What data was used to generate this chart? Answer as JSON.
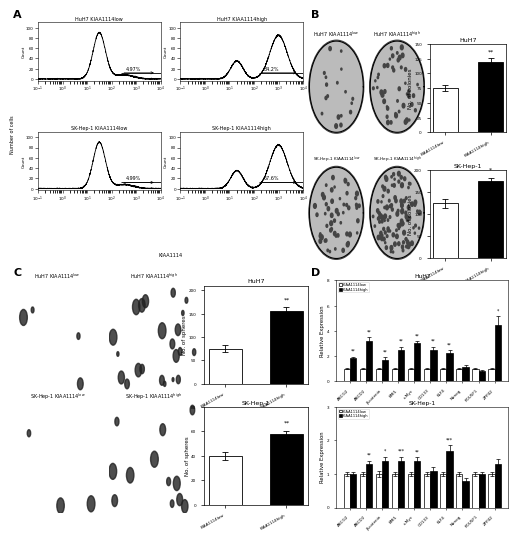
{
  "panel_A": {
    "label": "A",
    "titles": [
      "HuH7 KIAA1114low",
      "HuH7 KIAA1114high",
      "SK-Hep-1 KIAA1114low",
      "SK-Hep-1 KIAA1114high"
    ],
    "pcts": [
      "4.97%",
      "84.2%",
      "4.99%",
      "57.6%"
    ],
    "is_high": [
      false,
      true,
      false,
      true
    ],
    "xlabel": "KIAA1114",
    "ylabel": "Number of cells"
  },
  "panel_B_HuH7": {
    "categories": [
      "KIAA1114low",
      "KIAA1114high"
    ],
    "values": [
      75,
      120
    ],
    "errors": [
      5,
      6
    ],
    "colors": [
      "white",
      "black"
    ],
    "ylabel": "No. of colonies",
    "title": "HuH7",
    "ylim": [
      0,
      150
    ],
    "yticks": [
      0,
      25,
      50,
      75,
      100,
      125,
      150
    ],
    "sig": "**"
  },
  "panel_B_SKHep1": {
    "categories": [
      "KIAA1114low",
      "KIAA1114high"
    ],
    "values": [
      125,
      175
    ],
    "errors": [
      10,
      7
    ],
    "colors": [
      "white",
      "black"
    ],
    "ylabel": "No. of colonies",
    "title": "SK-Hep-1",
    "ylim": [
      0,
      200
    ],
    "yticks": [
      0,
      50,
      100,
      150,
      200
    ],
    "sig": "*"
  },
  "panel_C_HuH7": {
    "categories": [
      "KIAA1114low",
      "KIAA1114high"
    ],
    "values": [
      75,
      155
    ],
    "errors": [
      8,
      10
    ],
    "colors": [
      "white",
      "black"
    ],
    "ylabel": "No. of spheres",
    "title": "HuH7",
    "ylim": [
      0,
      210
    ],
    "yticks": [
      0,
      50,
      100,
      150,
      200
    ],
    "sig": "**"
  },
  "panel_C_SKHep1": {
    "categories": [
      "KIAA1114low",
      "KIAA1114high"
    ],
    "values": [
      40,
      58
    ],
    "errors": [
      3,
      2
    ],
    "colors": [
      "white",
      "black"
    ],
    "ylabel": "No. of spheres",
    "title": "SK-Hep-1",
    "ylim": [
      0,
      80
    ],
    "yticks": [
      0,
      20,
      40,
      60,
      80
    ],
    "sig": "**"
  },
  "panel_D_HuH7": {
    "genes": [
      "ABCG2",
      "ABCD2",
      "β-catenin",
      "BMI1",
      "c-Myc",
      "CD133",
      "KLF4",
      "Nanog",
      "POU5F1",
      "ZFP42"
    ],
    "low_values": [
      1.0,
      1.0,
      1.0,
      1.0,
      1.0,
      1.0,
      1.0,
      1.0,
      1.0,
      1.0
    ],
    "high_values": [
      1.8,
      3.2,
      1.7,
      2.5,
      3.0,
      2.5,
      2.2,
      1.1,
      0.8,
      4.5
    ],
    "low_errors": [
      0.05,
      0.05,
      0.05,
      0.05,
      0.05,
      0.05,
      0.05,
      0.05,
      0.05,
      0.05
    ],
    "high_errors": [
      0.15,
      0.3,
      0.2,
      0.25,
      0.2,
      0.25,
      0.25,
      0.15,
      0.1,
      0.7
    ],
    "sig": [
      "**",
      "**",
      "**",
      "**",
      "**",
      "**",
      "**",
      "",
      "",
      "*"
    ],
    "title": "HuH7",
    "ylabel": "Relative Expression",
    "ylim": [
      0,
      8
    ],
    "yticks": [
      0,
      2,
      4,
      6,
      8
    ],
    "legend_low": "KIAA1114low",
    "legend_high": "KIAA1114high"
  },
  "panel_D_SKHep1": {
    "genes": [
      "ABCG2",
      "ABCD2",
      "β-catenin",
      "BMI1",
      "c-Myc",
      "CD133",
      "KLF4",
      "Nanog",
      "POU5F1",
      "ZFP42"
    ],
    "low_values": [
      1.0,
      1.0,
      1.0,
      1.0,
      1.0,
      1.0,
      1.0,
      1.0,
      1.0,
      1.0
    ],
    "high_values": [
      1.0,
      1.3,
      1.4,
      1.4,
      1.4,
      1.1,
      1.7,
      0.8,
      1.0,
      1.3
    ],
    "low_errors": [
      0.05,
      0.05,
      0.1,
      0.05,
      0.05,
      0.05,
      0.05,
      0.05,
      0.05,
      0.05
    ],
    "high_errors": [
      0.05,
      0.1,
      0.12,
      0.12,
      0.1,
      0.1,
      0.15,
      0.08,
      0.05,
      0.15
    ],
    "sig": [
      "",
      "**",
      "*",
      "***",
      "**",
      "",
      "***",
      "",
      "",
      ""
    ],
    "title": "SK-Hep-1",
    "ylabel": "Relative Expression",
    "ylim": [
      0,
      3
    ],
    "yticks": [
      0,
      1,
      2,
      3
    ],
    "legend_low": "KIAA1114low",
    "legend_high": "KIAA1114high"
  },
  "background_color": "#ffffff",
  "bar_width": 0.35
}
